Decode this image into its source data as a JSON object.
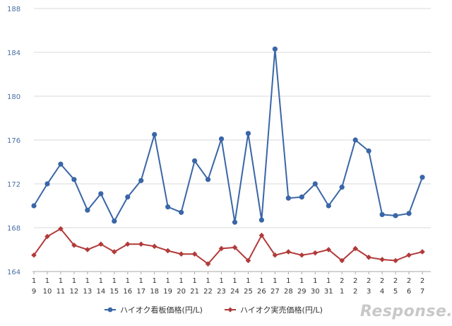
{
  "chart_data": {
    "type": "line",
    "categories": [
      [
        "1",
        "9"
      ],
      [
        "1",
        "10"
      ],
      [
        "1",
        "11"
      ],
      [
        "1",
        "12"
      ],
      [
        "1",
        "13"
      ],
      [
        "1",
        "14"
      ],
      [
        "1",
        "15"
      ],
      [
        "1",
        "16"
      ],
      [
        "1",
        "17"
      ],
      [
        "1",
        "18"
      ],
      [
        "1",
        "19"
      ],
      [
        "1",
        "20"
      ],
      [
        "1",
        "21"
      ],
      [
        "1",
        "22"
      ],
      [
        "1",
        "23"
      ],
      [
        "1",
        "24"
      ],
      [
        "1",
        "25"
      ],
      [
        "1",
        "26"
      ],
      [
        "1",
        "27"
      ],
      [
        "1",
        "28"
      ],
      [
        "1",
        "29"
      ],
      [
        "1",
        "30"
      ],
      [
        "1",
        "31"
      ],
      [
        "2",
        "1"
      ],
      [
        "2",
        "2"
      ],
      [
        "2",
        "3"
      ],
      [
        "2",
        "4"
      ],
      [
        "2",
        "5"
      ],
      [
        "2",
        "6"
      ],
      [
        "2",
        "7"
      ]
    ],
    "series": [
      {
        "name": "ハイオク看板価格(円/L)",
        "color": "#3a66a7",
        "marker": "circle",
        "values": [
          170.0,
          172.0,
          173.8,
          172.4,
          169.6,
          171.1,
          168.6,
          170.8,
          172.3,
          176.5,
          169.9,
          169.4,
          174.1,
          172.4,
          176.1,
          168.5,
          176.6,
          168.7,
          184.3,
          170.7,
          170.8,
          172.0,
          170.0,
          171.7,
          176.0,
          175.0,
          169.2,
          169.1,
          169.3,
          172.6
        ]
      },
      {
        "name": "ハイオク実売価格(円/L)",
        "color": "#b23a3a",
        "marker": "diamond",
        "values": [
          165.5,
          167.2,
          167.9,
          166.4,
          166.0,
          166.5,
          165.8,
          166.5,
          166.5,
          166.3,
          165.9,
          165.6,
          165.6,
          164.7,
          166.1,
          166.2,
          165.0,
          167.3,
          165.5,
          165.8,
          165.5,
          165.7,
          166.0,
          165.0,
          166.1,
          165.3,
          165.1,
          165.0,
          165.5,
          165.8
        ]
      }
    ],
    "yticks": [
      "164",
      "168",
      "172",
      "176",
      "180",
      "184",
      "188"
    ],
    "ylim": [
      164,
      188
    ],
    "grid": true,
    "legend_position": "bottom-center"
  },
  "watermark": "Response."
}
